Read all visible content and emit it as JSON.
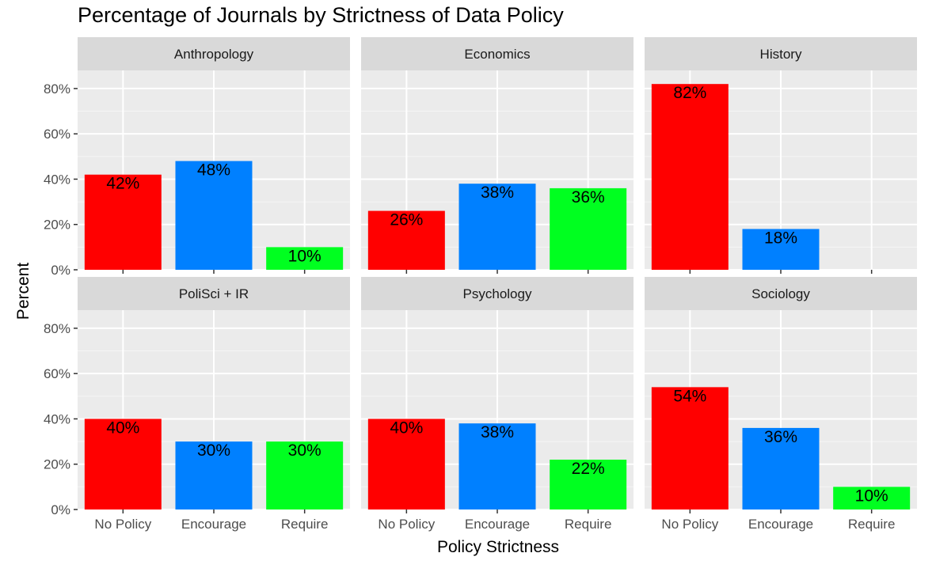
{
  "chart_data": {
    "type": "bar",
    "title": "Percentage of Journals by Strictness of Data Policy",
    "xlabel": "Policy Strictness",
    "ylabel": "Percent",
    "ylim": [
      0,
      88
    ],
    "y_ticks": [
      0,
      20,
      40,
      60,
      80
    ],
    "y_tick_labels": [
      "0%",
      "20%",
      "40%",
      "60%",
      "80%"
    ],
    "categories": [
      "No Policy",
      "Encourage",
      "Require"
    ],
    "category_colors": [
      "#ff0000",
      "#0080ff",
      "#00ff20"
    ],
    "facets": [
      {
        "name": "Anthropology",
        "values": [
          42,
          48,
          10
        ],
        "labels": [
          "42%",
          "48%",
          "10%"
        ]
      },
      {
        "name": "Economics",
        "values": [
          26,
          38,
          36
        ],
        "labels": [
          "26%",
          "38%",
          "36%"
        ]
      },
      {
        "name": "History",
        "values": [
          82,
          18,
          null
        ],
        "labels": [
          "82%",
          "18%",
          ""
        ]
      },
      {
        "name": "PoliSci + IR",
        "values": [
          40,
          30,
          30
        ],
        "labels": [
          "40%",
          "30%",
          "30%"
        ]
      },
      {
        "name": "Psychology",
        "values": [
          40,
          38,
          22
        ],
        "labels": [
          "40%",
          "38%",
          "22%"
        ]
      },
      {
        "name": "Sociology",
        "values": [
          54,
          36,
          10
        ],
        "labels": [
          "54%",
          "36%",
          "10%"
        ]
      }
    ],
    "grid": true,
    "legend": "none",
    "colors": {
      "panel_background": "#ebebeb",
      "strip_background": "#d9d9d9",
      "grid_major": "#ffffff",
      "grid_minor": "#f5f5f5"
    }
  }
}
